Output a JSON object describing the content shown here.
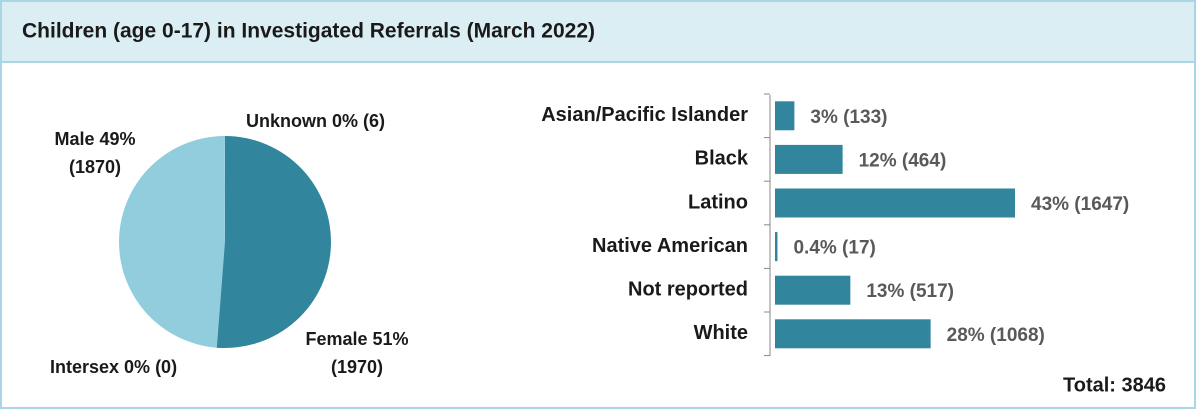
{
  "title": "Children (age 0-17) in Investigated Referrals (March 2022)",
  "chart_data": [
    {
      "type": "pie",
      "categories": [
        "Female 51%",
        "Intersex 0%",
        "Male 49%",
        "Unknown 0%"
      ],
      "values": [
        1970,
        0,
        1870,
        6
      ],
      "value_labels": [
        "(1970)",
        "(0)",
        "(1870)",
        "(6)"
      ],
      "colors": [
        "#31859c",
        "#31859c",
        "#92cddd",
        "#92cddd"
      ]
    },
    {
      "type": "hbar",
      "categories": [
        "Asian/Pacific Islander",
        "Black",
        "Latino",
        "Native American",
        "Not reported",
        "White"
      ],
      "values": [
        133,
        464,
        1647,
        17,
        517,
        1068
      ],
      "value_labels": [
        "3% (133)",
        "12% (464)",
        "43% (1647)",
        "0.4% (17)",
        "13% (517)",
        "28% (1068)"
      ],
      "color": "#31859c"
    }
  ],
  "total": "Total: 3846"
}
